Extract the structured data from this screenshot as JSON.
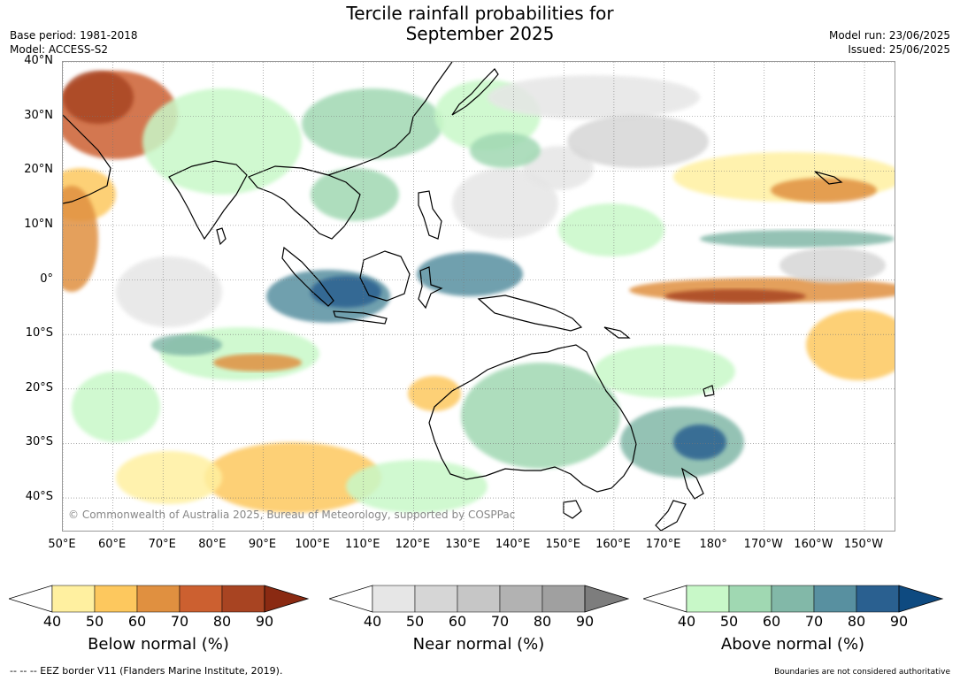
{
  "header": {
    "title_line1": "Tercile rainfall probabilities for",
    "title_line2": "September 2025",
    "base_period": "Base period: 1981-2018",
    "model": "Model: ACCESS-S2",
    "model_run": "Model run: 23/06/2025",
    "issued": "Issued: 25/06/2025"
  },
  "map": {
    "lat_labels": [
      "40°N",
      "30°N",
      "20°N",
      "10°N",
      "0°",
      "10°S",
      "20°S",
      "30°S",
      "40°S"
    ],
    "lat_values": [
      40,
      30,
      20,
      10,
      0,
      -10,
      -20,
      -30,
      -40
    ],
    "lon_labels": [
      "50°E",
      "60°E",
      "70°E",
      "80°E",
      "90°E",
      "100°E",
      "110°E",
      "120°E",
      "130°E",
      "140°E",
      "150°E",
      "160°E",
      "170°E",
      "180°",
      "170°W",
      "160°W",
      "150°W"
    ],
    "lon_values": [
      50,
      60,
      70,
      80,
      90,
      100,
      110,
      120,
      130,
      140,
      150,
      160,
      170,
      180,
      190,
      200,
      210
    ],
    "extent": {
      "lon_min": 50,
      "lon_max": 216,
      "lat_min": -46,
      "lat_max": 40
    },
    "copyright": "© Commonwealth of Australia 2025, Bureau of Meteorology, supported by COSPPac",
    "land_color": "#000000",
    "grid": "dotted"
  },
  "colorbars": [
    {
      "label": "Below normal (%)",
      "ticks": [
        "40",
        "50",
        "60",
        "70",
        "80",
        "90"
      ],
      "colors": [
        "#fff0a0",
        "#fdc85e",
        "#e09040",
        "#cc6030",
        "#a84422"
      ],
      "extend_color": "#8a2a12"
    },
    {
      "label": "Near normal (%)",
      "ticks": [
        "40",
        "50",
        "60",
        "70",
        "80",
        "90"
      ],
      "colors": [
        "#e6e6e6",
        "#d6d6d6",
        "#c6c6c6",
        "#b2b2b2",
        "#a0a0a0"
      ],
      "extend_color": "#7d7d7d"
    },
    {
      "label": "Above normal (%)",
      "ticks": [
        "40",
        "50",
        "60",
        "70",
        "80",
        "90"
      ],
      "colors": [
        "#c8f8c8",
        "#a0d8b2",
        "#82b8a8",
        "#5890a0",
        "#2a6090"
      ],
      "extend_color": "#0e4a80"
    }
  ],
  "footer": {
    "eez": "--  --  -- EEZ border V11 (Flanders Marine Institute, 2019).",
    "disclaimer": "Boundaries are not considered authoritative"
  }
}
